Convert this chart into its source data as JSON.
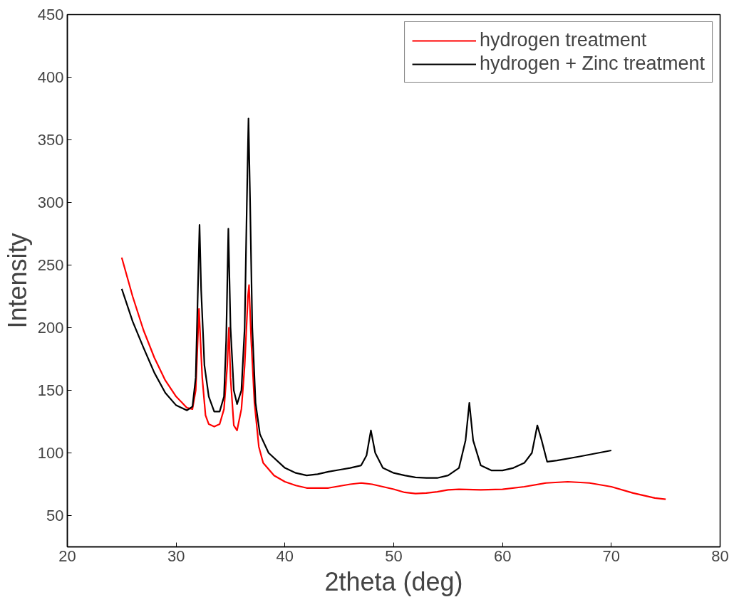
{
  "chart_data": {
    "type": "line",
    "xlabel": "2theta (deg)",
    "ylabel": "Intensity",
    "xlim": [
      20,
      80
    ],
    "ylim": [
      25,
      450
    ],
    "xticks": [
      20,
      30,
      40,
      50,
      60,
      70,
      80
    ],
    "yticks": [
      50,
      100,
      150,
      200,
      250,
      300,
      350,
      400,
      450
    ],
    "grid": false,
    "legend": "top right",
    "line_style": "solid",
    "marker": "none",
    "series": [
      {
        "name": "hydrogen treatment",
        "color": "#ff0000",
        "x": [
          25,
          26,
          27,
          28,
          29,
          30,
          31,
          31.5,
          31.8,
          32.1,
          32.4,
          32.7,
          33,
          33.5,
          34,
          34.4,
          34.7,
          34.85,
          35.0,
          35.3,
          35.6,
          36,
          36.3,
          36.6,
          36.7,
          36.9,
          37.2,
          37.6,
          38,
          39,
          40,
          41,
          42,
          44,
          46,
          47,
          48,
          50,
          51,
          52,
          53,
          54,
          55,
          56,
          58,
          60,
          62,
          64,
          66,
          68,
          70,
          72,
          74,
          75
        ],
        "values": [
          256,
          225,
          198,
          176,
          158,
          145,
          136,
          135,
          150,
          215,
          160,
          130,
          123,
          121,
          123,
          135,
          170,
          200,
          160,
          122,
          118,
          135,
          170,
          225,
          234,
          190,
          140,
          105,
          92,
          82,
          77,
          74,
          72,
          72,
          75,
          76,
          75,
          71,
          68.5,
          67.5,
          68,
          69,
          70.5,
          71,
          70.5,
          71,
          73,
          76,
          77,
          76,
          73,
          68,
          64,
          63
        ]
      },
      {
        "name": "hydrogen + Zinc treatment",
        "color": "#000000",
        "x": [
          25,
          26,
          27,
          28,
          29,
          30,
          31,
          31.5,
          31.8,
          32.0,
          32.15,
          32.3,
          32.6,
          33,
          33.5,
          34,
          34.4,
          34.6,
          34.8,
          35.0,
          35.3,
          35.6,
          36,
          36.3,
          36.5,
          36.65,
          36.8,
          37.0,
          37.3,
          37.7,
          38.5,
          40,
          41,
          42,
          43,
          44,
          45,
          46,
          47,
          47.5,
          47.9,
          48.3,
          49,
          50,
          51,
          52,
          53,
          54,
          55,
          56,
          56.6,
          56.95,
          57.3,
          58,
          59,
          60,
          61,
          62,
          62.7,
          63.2,
          63.6,
          64.1,
          65,
          67,
          70
        ],
        "values": [
          231,
          205,
          184,
          164,
          148,
          138,
          134,
          137,
          160,
          230,
          282,
          230,
          170,
          145,
          133,
          133,
          145,
          190,
          279,
          200,
          150,
          139,
          150,
          200,
          300,
          367,
          300,
          200,
          140,
          115,
          100,
          88,
          84,
          82,
          83,
          85,
          86.5,
          88,
          90,
          98,
          118,
          100,
          88,
          84,
          82,
          80.5,
          80,
          80,
          82,
          88,
          110,
          140,
          110,
          90,
          86,
          86,
          88,
          92,
          100,
          122,
          110,
          93,
          94,
          97,
          102
        ]
      }
    ]
  }
}
